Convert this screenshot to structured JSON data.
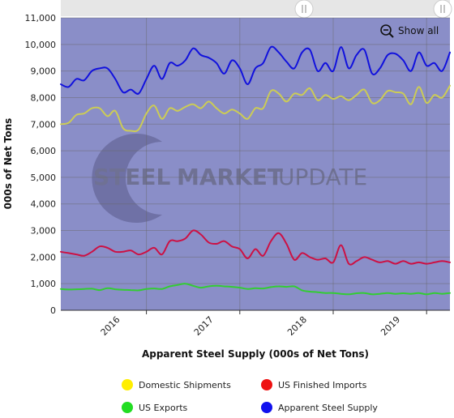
{
  "chart_data": {
    "type": "line",
    "title": "",
    "xlabel": "Apparent Steel Supply (000s of Net Tons)",
    "ylabel": "000s of Net Tons",
    "ylim": [
      0,
      11000
    ],
    "yticks": [
      0,
      1000,
      2000,
      3000,
      4000,
      5000,
      6000,
      7000,
      8000,
      9000,
      10000,
      11000
    ],
    "ytick_labels": [
      "0",
      "1,000",
      "2,000",
      "3,000",
      "4,000",
      "5,000",
      "6,000",
      "7,000",
      "8,000",
      "9,000",
      "10,000",
      "11,000"
    ],
    "xlim": [
      "2015-02",
      "2019-04"
    ],
    "xtick_labels": [
      "2016",
      "2017",
      "2018",
      "2019"
    ],
    "xticks": [
      "2016-01",
      "2017-01",
      "2018-01",
      "2019-01"
    ],
    "grid": true,
    "legend_position": "bottom",
    "x": [
      "2015-02",
      "2015-03",
      "2015-04",
      "2015-05",
      "2015-06",
      "2015-07",
      "2015-08",
      "2015-09",
      "2015-10",
      "2015-11",
      "2015-12",
      "2016-01",
      "2016-02",
      "2016-03",
      "2016-04",
      "2016-05",
      "2016-06",
      "2016-07",
      "2016-08",
      "2016-09",
      "2016-10",
      "2016-11",
      "2016-12",
      "2017-01",
      "2017-02",
      "2017-03",
      "2017-04",
      "2017-05",
      "2017-06",
      "2017-07",
      "2017-08",
      "2017-09",
      "2017-10",
      "2017-11",
      "2017-12",
      "2018-01",
      "2018-02",
      "2018-03",
      "2018-04",
      "2018-05",
      "2018-06",
      "2018-07",
      "2018-08",
      "2018-09",
      "2018-10",
      "2018-11",
      "2018-12",
      "2019-01",
      "2019-02",
      "2019-03",
      "2019-04"
    ],
    "series": [
      {
        "name": "Apparent Steel Supply",
        "color": "#1111dd",
        "values": [
          8500,
          8400,
          8700,
          8650,
          9000,
          9100,
          9100,
          8700,
          8200,
          8300,
          8150,
          8700,
          9200,
          8700,
          9300,
          9200,
          9400,
          9850,
          9600,
          9500,
          9300,
          8900,
          9400,
          9100,
          8500,
          9100,
          9300,
          9900,
          9700,
          9350,
          9100,
          9700,
          9800,
          9000,
          9300,
          9000,
          9900,
          9100,
          9600,
          9800,
          8900,
          9100,
          9600,
          9650,
          9400,
          9000,
          9700,
          9200,
          9300,
          9000,
          9700
        ]
      },
      {
        "name": "Domestic Shipments",
        "color": "#cccc55",
        "values": [
          7000,
          7050,
          7350,
          7400,
          7600,
          7600,
          7300,
          7500,
          6850,
          6750,
          6800,
          7400,
          7700,
          7200,
          7600,
          7500,
          7650,
          7750,
          7600,
          7850,
          7600,
          7400,
          7550,
          7400,
          7200,
          7600,
          7600,
          8250,
          8150,
          7850,
          8150,
          8100,
          8350,
          7900,
          8100,
          7950,
          8050,
          7900,
          8100,
          8300,
          7800,
          7900,
          8250,
          8200,
          8150,
          7750,
          8400,
          7800,
          8100,
          8000,
          8450
        ]
      },
      {
        "name": "US Finished Imports",
        "color": "#cc1144",
        "values": [
          2200,
          2150,
          2100,
          2050,
          2200,
          2400,
          2350,
          2200,
          2200,
          2250,
          2100,
          2200,
          2350,
          2100,
          2600,
          2600,
          2700,
          3000,
          2850,
          2550,
          2500,
          2600,
          2400,
          2300,
          1950,
          2300,
          2050,
          2600,
          2900,
          2500,
          1900,
          2150,
          2000,
          1900,
          1950,
          1800,
          2450,
          1750,
          1850,
          2000,
          1900,
          1800,
          1850,
          1750,
          1850,
          1750,
          1800,
          1750,
          1800,
          1850,
          1800
        ]
      },
      {
        "name": "US Exports",
        "color": "#33cc33",
        "values": [
          800,
          780,
          790,
          800,
          810,
          760,
          830,
          790,
          770,
          760,
          750,
          800,
          820,
          800,
          900,
          950,
          1000,
          920,
          850,
          900,
          920,
          900,
          880,
          850,
          800,
          830,
          820,
          870,
          900,
          880,
          900,
          750,
          700,
          680,
          650,
          650,
          620,
          600,
          640,
          650,
          600,
          620,
          650,
          620,
          640,
          620,
          650,
          600,
          650,
          620,
          650
        ]
      }
    ],
    "legend": [
      {
        "label": "Domestic Shipments",
        "color": "#ffee00"
      },
      {
        "label": "US Finished Imports",
        "color": "#ee1111"
      },
      {
        "label": "US Exports",
        "color": "#22dd22"
      },
      {
        "label": "Apparent Steel Supply",
        "color": "#1111ee"
      }
    ]
  },
  "toolbar": {
    "show_all_label": "Show all"
  },
  "watermark": {
    "word1": "STEEL",
    "word2": "MARKET",
    "word3": "UPDATE"
  },
  "colors": {
    "plot_band": "#8a8ec8",
    "plot_top": "#aaaaaa",
    "navigator_bg": "#e6e6e6"
  }
}
